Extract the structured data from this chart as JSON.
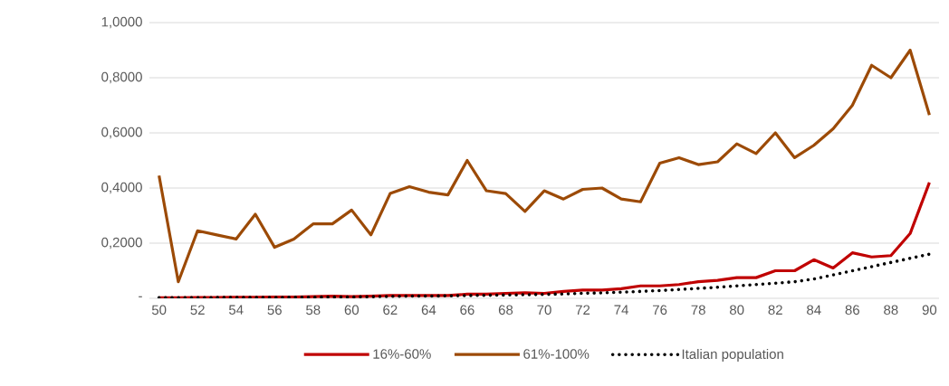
{
  "chart_data": {
    "type": "line",
    "x": [
      50,
      51,
      52,
      53,
      54,
      55,
      56,
      57,
      58,
      59,
      60,
      61,
      62,
      63,
      64,
      65,
      66,
      67,
      68,
      69,
      70,
      71,
      72,
      73,
      74,
      75,
      76,
      77,
      78,
      79,
      80,
      81,
      82,
      83,
      84,
      85,
      86,
      87,
      88,
      89,
      90
    ],
    "series": [
      {
        "name": "16%-60%",
        "color": "#c00000",
        "line_style": "solid",
        "values": [
          0.002,
          0.002,
          0.003,
          0.003,
          0.004,
          0.004,
          0.005,
          0.005,
          0.006,
          0.008,
          0.006,
          0.008,
          0.01,
          0.01,
          0.01,
          0.01,
          0.015,
          0.015,
          0.018,
          0.02,
          0.018,
          0.025,
          0.03,
          0.03,
          0.035,
          0.045,
          0.045,
          0.05,
          0.06,
          0.065,
          0.075,
          0.075,
          0.1,
          0.1,
          0.14,
          0.11,
          0.165,
          0.15,
          0.155,
          0.235,
          0.42
        ]
      },
      {
        "name": "61%-100%",
        "color": "#9c4a06",
        "line_style": "solid",
        "values": [
          0.445,
          0.06,
          0.245,
          0.23,
          0.215,
          0.305,
          0.185,
          0.215,
          0.27,
          0.27,
          0.32,
          0.23,
          0.38,
          0.405,
          0.385,
          0.375,
          0.5,
          0.39,
          0.38,
          0.315,
          0.39,
          0.36,
          0.395,
          0.4,
          0.36,
          0.35,
          0.49,
          0.51,
          0.485,
          0.495,
          0.56,
          0.525,
          0.6,
          0.51,
          0.555,
          0.615,
          0.7,
          0.845,
          0.8,
          0.9,
          0.665
        ]
      },
      {
        "name": "Italian population",
        "color": "#000000",
        "line_style": "dotted",
        "values": [
          0.002,
          0.002,
          0.002,
          0.003,
          0.003,
          0.003,
          0.003,
          0.004,
          0.004,
          0.005,
          0.005,
          0.006,
          0.007,
          0.008,
          0.008,
          0.009,
          0.01,
          0.011,
          0.012,
          0.013,
          0.014,
          0.016,
          0.018,
          0.02,
          0.022,
          0.025,
          0.028,
          0.032,
          0.036,
          0.04,
          0.045,
          0.05,
          0.055,
          0.06,
          0.07,
          0.085,
          0.1,
          0.115,
          0.13,
          0.145,
          0.16
        ]
      }
    ],
    "xlim": [
      49.5,
      90.5
    ],
    "xticks": [
      50,
      52,
      54,
      56,
      58,
      60,
      62,
      64,
      66,
      68,
      70,
      72,
      74,
      76,
      78,
      80,
      82,
      84,
      86,
      88,
      90
    ],
    "ylim": [
      0,
      1
    ],
    "yticks": [
      {
        "value": 0,
        "label": "-"
      },
      {
        "value": 0.2,
        "label": "0,2000"
      },
      {
        "value": 0.4,
        "label": "0,4000"
      },
      {
        "value": 0.6,
        "label": "0,6000"
      },
      {
        "value": 0.8,
        "label": "0,8000"
      },
      {
        "value": 1,
        "label": "1,0000"
      }
    ],
    "grid": "y",
    "legend": "bottom"
  }
}
